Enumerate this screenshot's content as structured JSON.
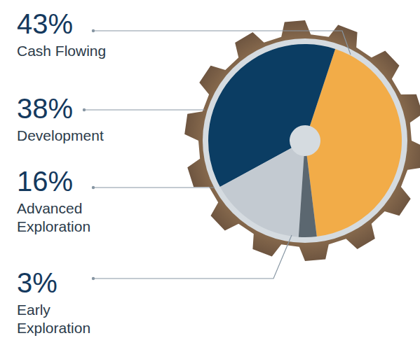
{
  "chart_data": {
    "type": "pie",
    "categories": [
      "Cash Flowing",
      "Development",
      "Advanced Exploration",
      "Early Exploration"
    ],
    "values": [
      43,
      38,
      16,
      3
    ],
    "value_labels": [
      "43%",
      "38%",
      "16%",
      "3%"
    ],
    "colors": [
      "#f2ac48",
      "#0b3d63",
      "#c3cad1",
      "#5b6770"
    ]
  }
}
